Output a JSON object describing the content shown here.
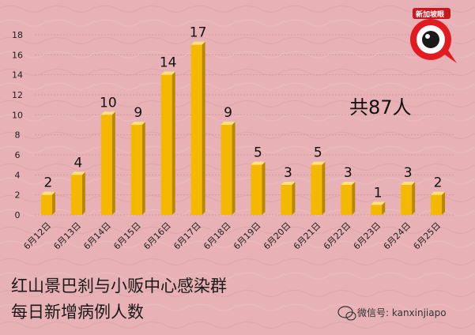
{
  "chart_data": {
    "type": "bar",
    "categories": [
      "6月12日",
      "6月13日",
      "6月14日",
      "6月15日",
      "6月16日",
      "6月17日",
      "6月18日",
      "6月19日",
      "6月20日",
      "6月21日",
      "6月22日",
      "6月23日",
      "6月24日",
      "6月25日"
    ],
    "values": [
      2,
      4,
      10,
      9,
      14,
      17,
      9,
      5,
      3,
      5,
      3,
      1,
      3,
      2
    ],
    "yticks": [
      0,
      2,
      4,
      6,
      8,
      10,
      12,
      14,
      16,
      18
    ],
    "ylim": [
      0,
      18
    ],
    "title": "",
    "xlabel": "",
    "ylabel": "",
    "bar_color": "#f5b800",
    "bar_top_color": "#ffe27a",
    "bar_side_color": "#b88700"
  },
  "annotation_total": "共87人",
  "caption": {
    "line1": "红山景巴刹与小贩中心感染群",
    "line2": "每日新增病例人数"
  },
  "logo": {
    "text": "新加坡眼",
    "accent": "#e21b23"
  },
  "wechat": {
    "icon": "wechat-icon",
    "text": "微信号: kanxinjiapo"
  }
}
